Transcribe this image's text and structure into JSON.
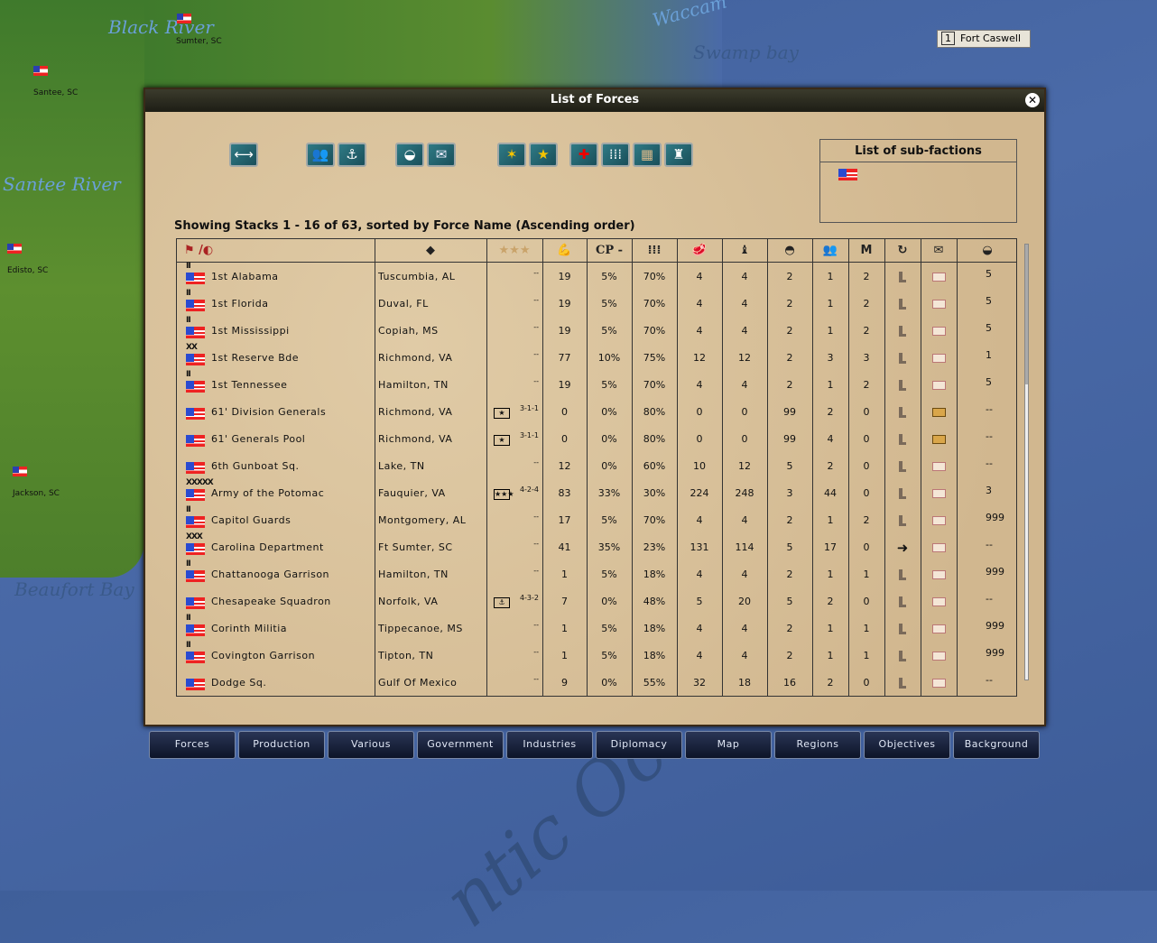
{
  "map": {
    "labels": [
      "Black River",
      "Santee River",
      "Beaufort Bay",
      "Swamp bay",
      "Waccam",
      "ntic Oc"
    ],
    "towns": [
      "Sumter, SC",
      "Santee, SC",
      "Edisto, SC",
      "Jackson, SC"
    ],
    "fort": {
      "level": "1",
      "name": "Fort Caswell"
    }
  },
  "window": {
    "title": "List of Forces",
    "close_icon": "close-icon"
  },
  "toolbar": {
    "buttons": [
      "swap-arrows-icon",
      "land-units-icon",
      "anchor-icon",
      "supply-wagon-icon",
      "mail-icon",
      "no-leader-star-icon",
      "leader-star-icon",
      "medical-cross-icon",
      "grid-formation-icon",
      "supply-crates-icon",
      "artillery-stack-icon"
    ]
  },
  "subfactions": {
    "title": "List of sub-factions",
    "flag": "confederate-flag"
  },
  "status": "Showing Stacks 1 - 16 of  63, sorted by Force Name  (Ascending order)",
  "columns": [
    "flag-icon / helmet-icon",
    "location-icon",
    "★★★",
    "strength-icon",
    "CP -",
    "formation-icon",
    "supply-icon",
    "ammo-icon",
    "cohesion-gauge-icon",
    "units-icon",
    "M",
    "order-arrow-icon",
    "mail-icon",
    "supply-wagon-icon"
  ],
  "cp_header": "CP -",
  "m_header": "M",
  "rows": [
    {
      "rank": "II",
      "name": "1st Alabama",
      "loc": "Tuscumbia, AL",
      "leader": "",
      "stats": "--",
      "pow": "19",
      "cp": "5%",
      "q": "70%",
      "sup": "4",
      "amm": "4",
      "coh": "2",
      "units": "1",
      "m": "2",
      "order": "boot",
      "mail": "closed",
      "last": "5"
    },
    {
      "rank": "II",
      "name": "1st Florida",
      "loc": "Duval, FL",
      "leader": "",
      "stats": "--",
      "pow": "19",
      "cp": "5%",
      "q": "70%",
      "sup": "4",
      "amm": "4",
      "coh": "2",
      "units": "1",
      "m": "2",
      "order": "boot",
      "mail": "closed",
      "last": "5"
    },
    {
      "rank": "II",
      "name": "1st Mississippi",
      "loc": "Copiah, MS",
      "leader": "",
      "stats": "--",
      "pow": "19",
      "cp": "5%",
      "q": "70%",
      "sup": "4",
      "amm": "4",
      "coh": "2",
      "units": "1",
      "m": "2",
      "order": "boot",
      "mail": "closed",
      "last": "5"
    },
    {
      "rank": "XX",
      "name": "1st Reserve Bde",
      "loc": "Richmond, VA",
      "leader": "",
      "stats": "--",
      "pow": "77",
      "cp": "10%",
      "q": "75%",
      "sup": "12",
      "amm": "12",
      "coh": "2",
      "units": "3",
      "m": "3",
      "order": "boot",
      "mail": "closed",
      "last": "1"
    },
    {
      "rank": "II",
      "name": "1st Tennessee",
      "loc": "Hamilton, TN",
      "leader": "",
      "stats": "--",
      "pow": "19",
      "cp": "5%",
      "q": "70%",
      "sup": "4",
      "amm": "4",
      "coh": "2",
      "units": "1",
      "m": "2",
      "order": "boot",
      "mail": "closed",
      "last": "5"
    },
    {
      "rank": "",
      "name": "61' Division Generals",
      "loc": "Richmond, VA",
      "leader": "★",
      "stats": "3-1-1",
      "pow": "0",
      "cp": "0%",
      "q": "80%",
      "sup": "0",
      "amm": "0",
      "coh": "99",
      "units": "2",
      "m": "0",
      "order": "boot",
      "mail": "open",
      "last": "--"
    },
    {
      "rank": "",
      "name": "61' Generals Pool",
      "loc": "Richmond, VA",
      "leader": "★",
      "stats": "3-1-1",
      "pow": "0",
      "cp": "0%",
      "q": "80%",
      "sup": "0",
      "amm": "0",
      "coh": "99",
      "units": "4",
      "m": "0",
      "order": "boot",
      "mail": "open",
      "last": "--"
    },
    {
      "rank": "",
      "name": "6th Gunboat Sq.",
      "loc": "Lake, TN",
      "leader": "",
      "stats": "--",
      "pow": "12",
      "cp": "0%",
      "q": "60%",
      "sup": "10",
      "amm": "12",
      "coh": "5",
      "units": "2",
      "m": "0",
      "order": "boot",
      "mail": "closed",
      "last": "--"
    },
    {
      "rank": "XXXXX",
      "name": "Army of the Potomac",
      "loc": "Fauquier, VA",
      "leader": "★★★",
      "stats": "4-2-4",
      "pow": "83",
      "cp": "33%",
      "q": "30%",
      "sup": "224",
      "amm": "248",
      "coh": "3",
      "units": "44",
      "m": "0",
      "order": "boot",
      "mail": "closed",
      "last": "3"
    },
    {
      "rank": "II",
      "name": "Capitol Guards",
      "loc": "Montgomery, AL",
      "leader": "",
      "stats": "--",
      "pow": "17",
      "cp": "5%",
      "q": "70%",
      "sup": "4",
      "amm": "4",
      "coh": "2",
      "units": "1",
      "m": "2",
      "order": "boot",
      "mail": "closed",
      "last": "999"
    },
    {
      "rank": "XXX",
      "name": "Carolina Department",
      "loc": "Ft Sumter, SC",
      "leader": "",
      "stats": "--",
      "pow": "41",
      "cp": "35%",
      "q": "23%",
      "sup": "131",
      "amm": "114",
      "coh": "5",
      "units": "17",
      "m": "0",
      "order": "arrow",
      "mail": "closed",
      "last": "--"
    },
    {
      "rank": "II",
      "name": "Chattanooga Garrison",
      "loc": "Hamilton, TN",
      "leader": "",
      "stats": "--",
      "pow": "1",
      "cp": "5%",
      "q": "18%",
      "sup": "4",
      "amm": "4",
      "coh": "2",
      "units": "1",
      "m": "1",
      "order": "boot",
      "mail": "closed",
      "last": "999"
    },
    {
      "rank": "",
      "name": "Chesapeake Squadron",
      "loc": "Norfolk, VA",
      "leader": "⚓",
      "stats": "4-3-2",
      "pow": "7",
      "cp": "0%",
      "q": "48%",
      "sup": "5",
      "amm": "20",
      "coh": "5",
      "units": "2",
      "m": "0",
      "order": "boot",
      "mail": "closed",
      "last": "--"
    },
    {
      "rank": "II",
      "name": "Corinth Militia",
      "loc": "Tippecanoe, MS",
      "leader": "",
      "stats": "--",
      "pow": "1",
      "cp": "5%",
      "q": "18%",
      "sup": "4",
      "amm": "4",
      "coh": "2",
      "units": "1",
      "m": "1",
      "order": "boot",
      "mail": "closed",
      "last": "999"
    },
    {
      "rank": "II",
      "name": "Covington Garrison",
      "loc": "Tipton, TN",
      "leader": "",
      "stats": "--",
      "pow": "1",
      "cp": "5%",
      "q": "18%",
      "sup": "4",
      "amm": "4",
      "coh": "2",
      "units": "1",
      "m": "1",
      "order": "boot",
      "mail": "closed",
      "last": "999"
    },
    {
      "rank": "",
      "name": "Dodge Sq.",
      "loc": "Gulf Of Mexico",
      "leader": "",
      "stats": "--",
      "pow": "9",
      "cp": "0%",
      "q": "55%",
      "sup": "32",
      "amm": "18",
      "coh": "16",
      "units": "2",
      "m": "0",
      "order": "boot",
      "mail": "closed",
      "last": "--"
    }
  ],
  "tabs": [
    "Forces",
    "Production",
    "Various",
    "Government",
    "Industries",
    "Diplomacy",
    "Map",
    "Regions",
    "Objectives",
    "Background"
  ]
}
